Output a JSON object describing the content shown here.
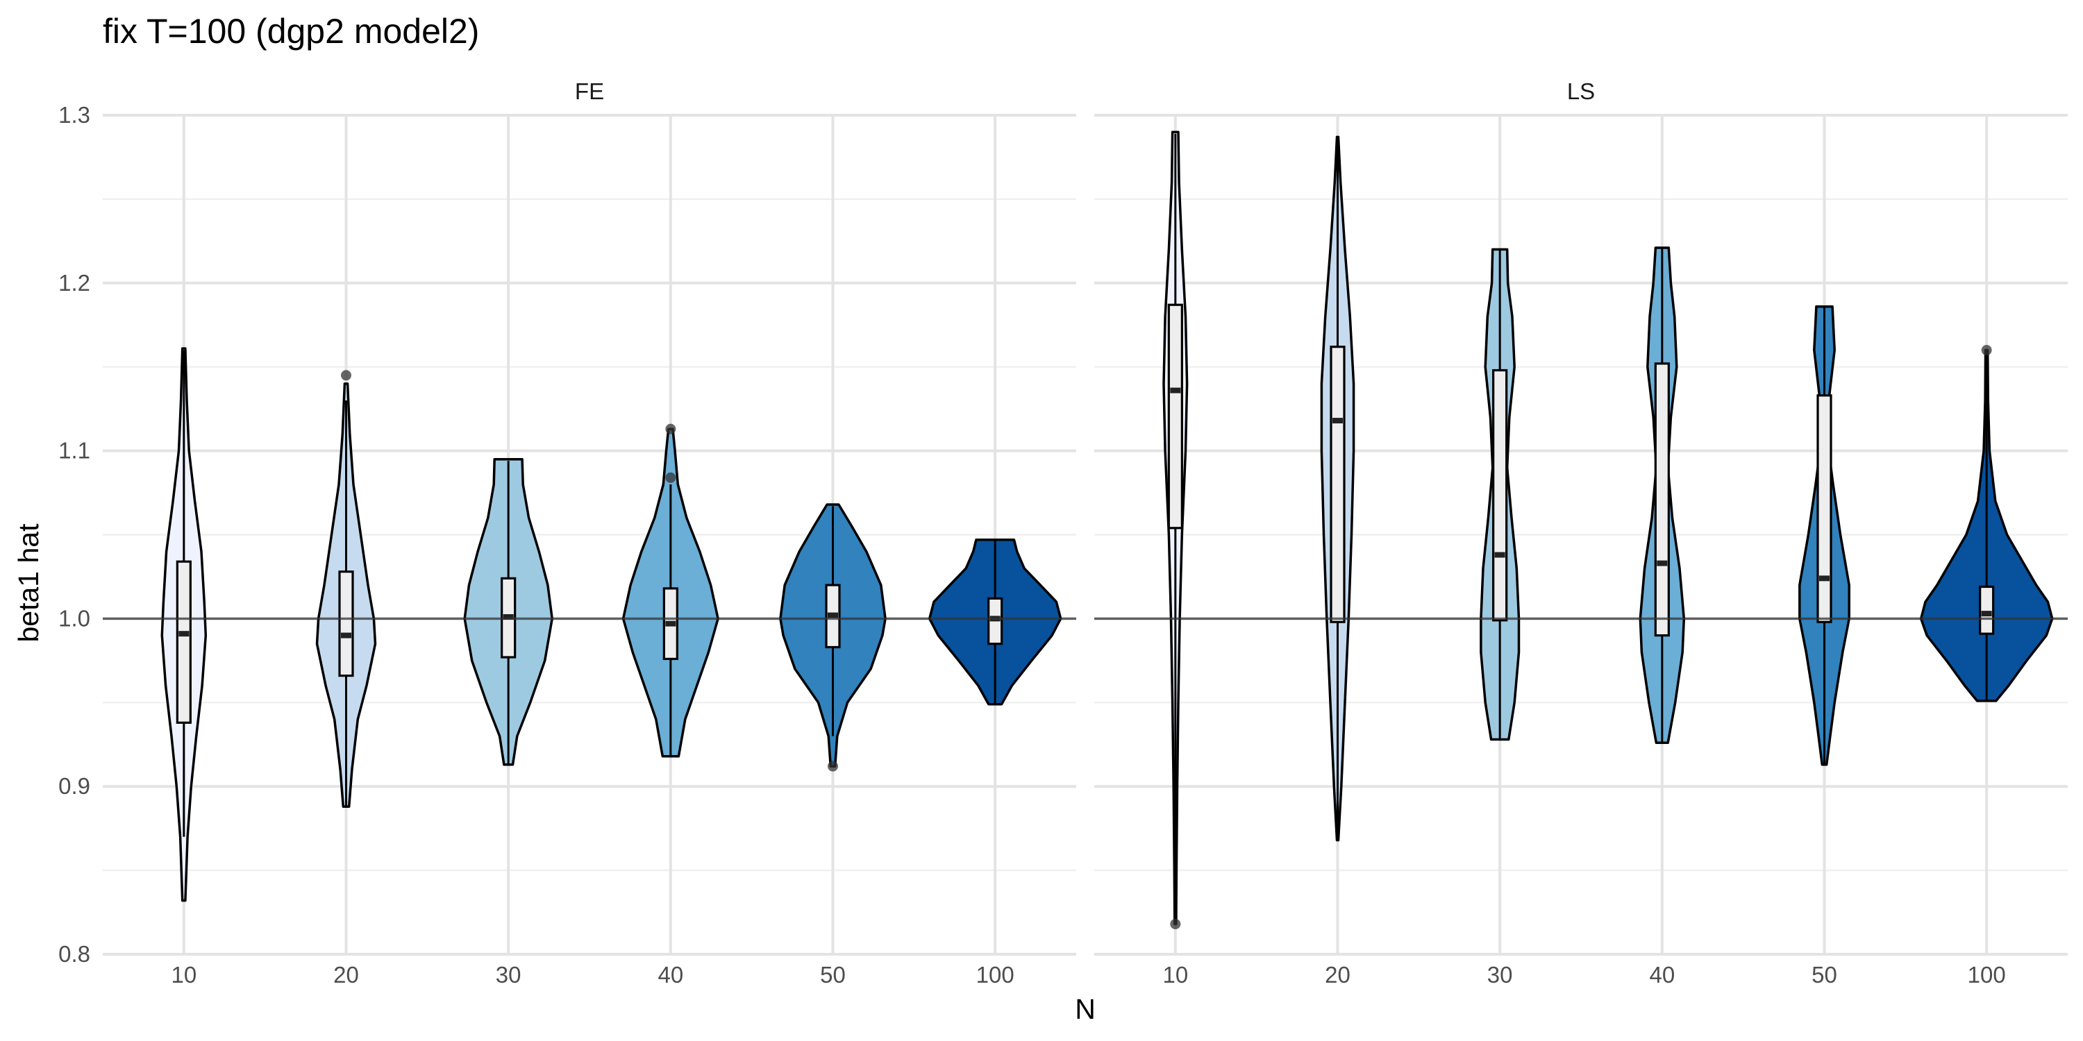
{
  "chart_data": {
    "type": "violin",
    "title": "fix T=100 (dgp2 model2)",
    "xlabel": "N",
    "ylabel": "beta1 hat",
    "categories": [
      "10",
      "20",
      "30",
      "40",
      "50",
      "100"
    ],
    "ylim": [
      0.8,
      1.3
    ],
    "y_ticks": [
      "0.8",
      "0.9",
      "1.0",
      "1.1",
      "1.2",
      "1.3"
    ],
    "reference_line": 1.0,
    "grid": true,
    "legend": "none",
    "fill_colors": [
      "#eff3ff",
      "#c6dbef",
      "#9ecae1",
      "#6baed6",
      "#3182bd",
      "#08519c"
    ],
    "panels": [
      {
        "name": "FE",
        "violins": [
          {
            "N": "10",
            "min": 0.832,
            "max": 1.161,
            "q1": 0.938,
            "median": 0.991,
            "q3": 1.034,
            "whisker_low": 0.87,
            "whisker_high": 1.16,
            "outliers": [],
            "density": [
              [
                0.832,
                0.02
              ],
              [
                0.87,
                0.05
              ],
              [
                0.9,
                0.1
              ],
              [
                0.93,
                0.17
              ],
              [
                0.96,
                0.25
              ],
              [
                0.99,
                0.3
              ],
              [
                1.01,
                0.28
              ],
              [
                1.04,
                0.24
              ],
              [
                1.07,
                0.15
              ],
              [
                1.1,
                0.07
              ],
              [
                1.13,
                0.04
              ],
              [
                1.161,
                0.02
              ]
            ]
          },
          {
            "N": "20",
            "min": 0.888,
            "max": 1.145,
            "q1": 0.966,
            "median": 0.99,
            "q3": 1.028,
            "whisker_low": 0.888,
            "whisker_high": 1.13,
            "outliers": [
              1.145
            ],
            "density": [
              [
                0.888,
                0.04
              ],
              [
                0.91,
                0.08
              ],
              [
                0.94,
                0.16
              ],
              [
                0.96,
                0.28
              ],
              [
                0.985,
                0.4
              ],
              [
                1.0,
                0.38
              ],
              [
                1.02,
                0.3
              ],
              [
                1.05,
                0.2
              ],
              [
                1.08,
                0.1
              ],
              [
                1.11,
                0.05
              ],
              [
                1.14,
                0.02
              ]
            ]
          },
          {
            "N": "30",
            "min": 0.913,
            "max": 1.095,
            "q1": 0.977,
            "median": 1.001,
            "q3": 1.024,
            "whisker_low": 0.913,
            "whisker_high": 1.094,
            "outliers": [],
            "density": [
              [
                0.913,
                0.06
              ],
              [
                0.93,
                0.12
              ],
              [
                0.95,
                0.3
              ],
              [
                0.975,
                0.5
              ],
              [
                1.0,
                0.6
              ],
              [
                1.02,
                0.54
              ],
              [
                1.04,
                0.42
              ],
              [
                1.06,
                0.28
              ],
              [
                1.08,
                0.2
              ],
              [
                1.095,
                0.19
              ]
            ]
          },
          {
            "N": "40",
            "min": 0.918,
            "max": 1.113,
            "q1": 0.976,
            "median": 0.997,
            "q3": 1.018,
            "whisker_low": 0.918,
            "whisker_high": 1.08,
            "outliers": [
              1.084,
              1.113
            ],
            "density": [
              [
                0.918,
                0.11
              ],
              [
                0.94,
                0.2
              ],
              [
                0.96,
                0.36
              ],
              [
                0.98,
                0.52
              ],
              [
                1.0,
                0.65
              ],
              [
                1.02,
                0.55
              ],
              [
                1.04,
                0.4
              ],
              [
                1.06,
                0.22
              ],
              [
                1.08,
                0.1
              ],
              [
                1.1,
                0.06
              ],
              [
                1.113,
                0.03
              ]
            ]
          },
          {
            "N": "50",
            "min": 0.912,
            "max": 1.068,
            "q1": 0.983,
            "median": 1.002,
            "q3": 1.02,
            "whisker_low": 0.93,
            "whisker_high": 1.067,
            "outliers": [
              0.912
            ],
            "density": [
              [
                0.912,
                0.03
              ],
              [
                0.93,
                0.06
              ],
              [
                0.95,
                0.2
              ],
              [
                0.97,
                0.52
              ],
              [
                0.99,
                0.68
              ],
              [
                1.0,
                0.72
              ],
              [
                1.02,
                0.66
              ],
              [
                1.04,
                0.46
              ],
              [
                1.055,
                0.26
              ],
              [
                1.068,
                0.08
              ]
            ]
          },
          {
            "N": "100",
            "min": 0.949,
            "max": 1.047,
            "q1": 0.985,
            "median": 1.0,
            "q3": 1.012,
            "whisker_low": 0.949,
            "whisker_high": 1.047,
            "outliers": [],
            "density": [
              [
                0.949,
                0.09
              ],
              [
                0.96,
                0.23
              ],
              [
                0.975,
                0.5
              ],
              [
                0.99,
                0.78
              ],
              [
                1.0,
                0.9
              ],
              [
                1.01,
                0.84
              ],
              [
                1.02,
                0.62
              ],
              [
                1.03,
                0.4
              ],
              [
                1.04,
                0.3
              ],
              [
                1.047,
                0.26
              ]
            ]
          }
        ]
      },
      {
        "name": "LS",
        "violins": [
          {
            "N": "10",
            "min": 0.818,
            "max": 1.29,
            "q1": 1.054,
            "median": 1.136,
            "q3": 1.187,
            "whisker_low": 0.86,
            "whisker_high": 1.289,
            "outliers": [
              0.818
            ],
            "density": [
              [
                0.818,
                0.01
              ],
              [
                0.85,
                0.015
              ],
              [
                0.9,
                0.025
              ],
              [
                0.95,
                0.04
              ],
              [
                1.0,
                0.06
              ],
              [
                1.05,
                0.09
              ],
              [
                1.1,
                0.14
              ],
              [
                1.14,
                0.16
              ],
              [
                1.18,
                0.14
              ],
              [
                1.22,
                0.09
              ],
              [
                1.26,
                0.05
              ],
              [
                1.29,
                0.04
              ]
            ]
          },
          {
            "N": "20",
            "min": 0.868,
            "max": 1.287,
            "q1": 0.998,
            "median": 1.118,
            "q3": 1.162,
            "whisker_low": 0.868,
            "whisker_high": 1.287,
            "outliers": [],
            "density": [
              [
                0.868,
                0.01
              ],
              [
                0.9,
                0.05
              ],
              [
                0.95,
                0.1
              ],
              [
                1.0,
                0.15
              ],
              [
                1.05,
                0.19
              ],
              [
                1.1,
                0.22
              ],
              [
                1.14,
                0.22
              ],
              [
                1.18,
                0.17
              ],
              [
                1.22,
                0.1
              ],
              [
                1.26,
                0.04
              ],
              [
                1.287,
                0.01
              ]
            ]
          },
          {
            "N": "30",
            "min": 0.928,
            "max": 1.22,
            "q1": 0.999,
            "median": 1.038,
            "q3": 1.148,
            "whisker_low": 0.928,
            "whisker_high": 1.22,
            "outliers": [],
            "density": [
              [
                0.928,
                0.12
              ],
              [
                0.95,
                0.2
              ],
              [
                0.98,
                0.26
              ],
              [
                1.0,
                0.26
              ],
              [
                1.03,
                0.23
              ],
              [
                1.06,
                0.16
              ],
              [
                1.09,
                0.1
              ],
              [
                1.12,
                0.13
              ],
              [
                1.15,
                0.2
              ],
              [
                1.18,
                0.17
              ],
              [
                1.2,
                0.11
              ],
              [
                1.22,
                0.1
              ]
            ]
          },
          {
            "N": "40",
            "min": 0.926,
            "max": 1.221,
            "q1": 0.99,
            "median": 1.033,
            "q3": 1.152,
            "whisker_low": 0.926,
            "whisker_high": 1.221,
            "outliers": [],
            "density": [
              [
                0.926,
                0.08
              ],
              [
                0.95,
                0.18
              ],
              [
                0.98,
                0.28
              ],
              [
                1.0,
                0.3
              ],
              [
                1.03,
                0.24
              ],
              [
                1.06,
                0.14
              ],
              [
                1.09,
                0.08
              ],
              [
                1.12,
                0.12
              ],
              [
                1.15,
                0.2
              ],
              [
                1.18,
                0.17
              ],
              [
                1.2,
                0.12
              ],
              [
                1.221,
                0.09
              ]
            ]
          },
          {
            "N": "50",
            "min": 0.913,
            "max": 1.186,
            "q1": 0.998,
            "median": 1.024,
            "q3": 1.133,
            "whisker_low": 0.913,
            "whisker_high": 1.186,
            "outliers": [],
            "density": [
              [
                0.913,
                0.03
              ],
              [
                0.93,
                0.08
              ],
              [
                0.95,
                0.14
              ],
              [
                0.98,
                0.25
              ],
              [
                1.0,
                0.34
              ],
              [
                1.02,
                0.34
              ],
              [
                1.05,
                0.22
              ],
              [
                1.08,
                0.12
              ],
              [
                1.1,
                0.06
              ],
              [
                1.13,
                0.06
              ],
              [
                1.16,
                0.14
              ],
              [
                1.186,
                0.11
              ]
            ]
          },
          {
            "N": "100",
            "min": 0.951,
            "max": 1.16,
            "q1": 0.991,
            "median": 1.003,
            "q3": 1.019,
            "whisker_low": 0.951,
            "whisker_high": 1.15,
            "outliers": [
              1.16
            ],
            "density": [
              [
                0.951,
                0.13
              ],
              [
                0.96,
                0.3
              ],
              [
                0.975,
                0.55
              ],
              [
                0.99,
                0.82
              ],
              [
                1.0,
                0.9
              ],
              [
                1.01,
                0.84
              ],
              [
                1.02,
                0.68
              ],
              [
                1.035,
                0.48
              ],
              [
                1.05,
                0.28
              ],
              [
                1.07,
                0.12
              ],
              [
                1.1,
                0.04
              ],
              [
                1.13,
                0.02
              ],
              [
                1.16,
                0.015
              ]
            ]
          }
        ]
      }
    ]
  }
}
